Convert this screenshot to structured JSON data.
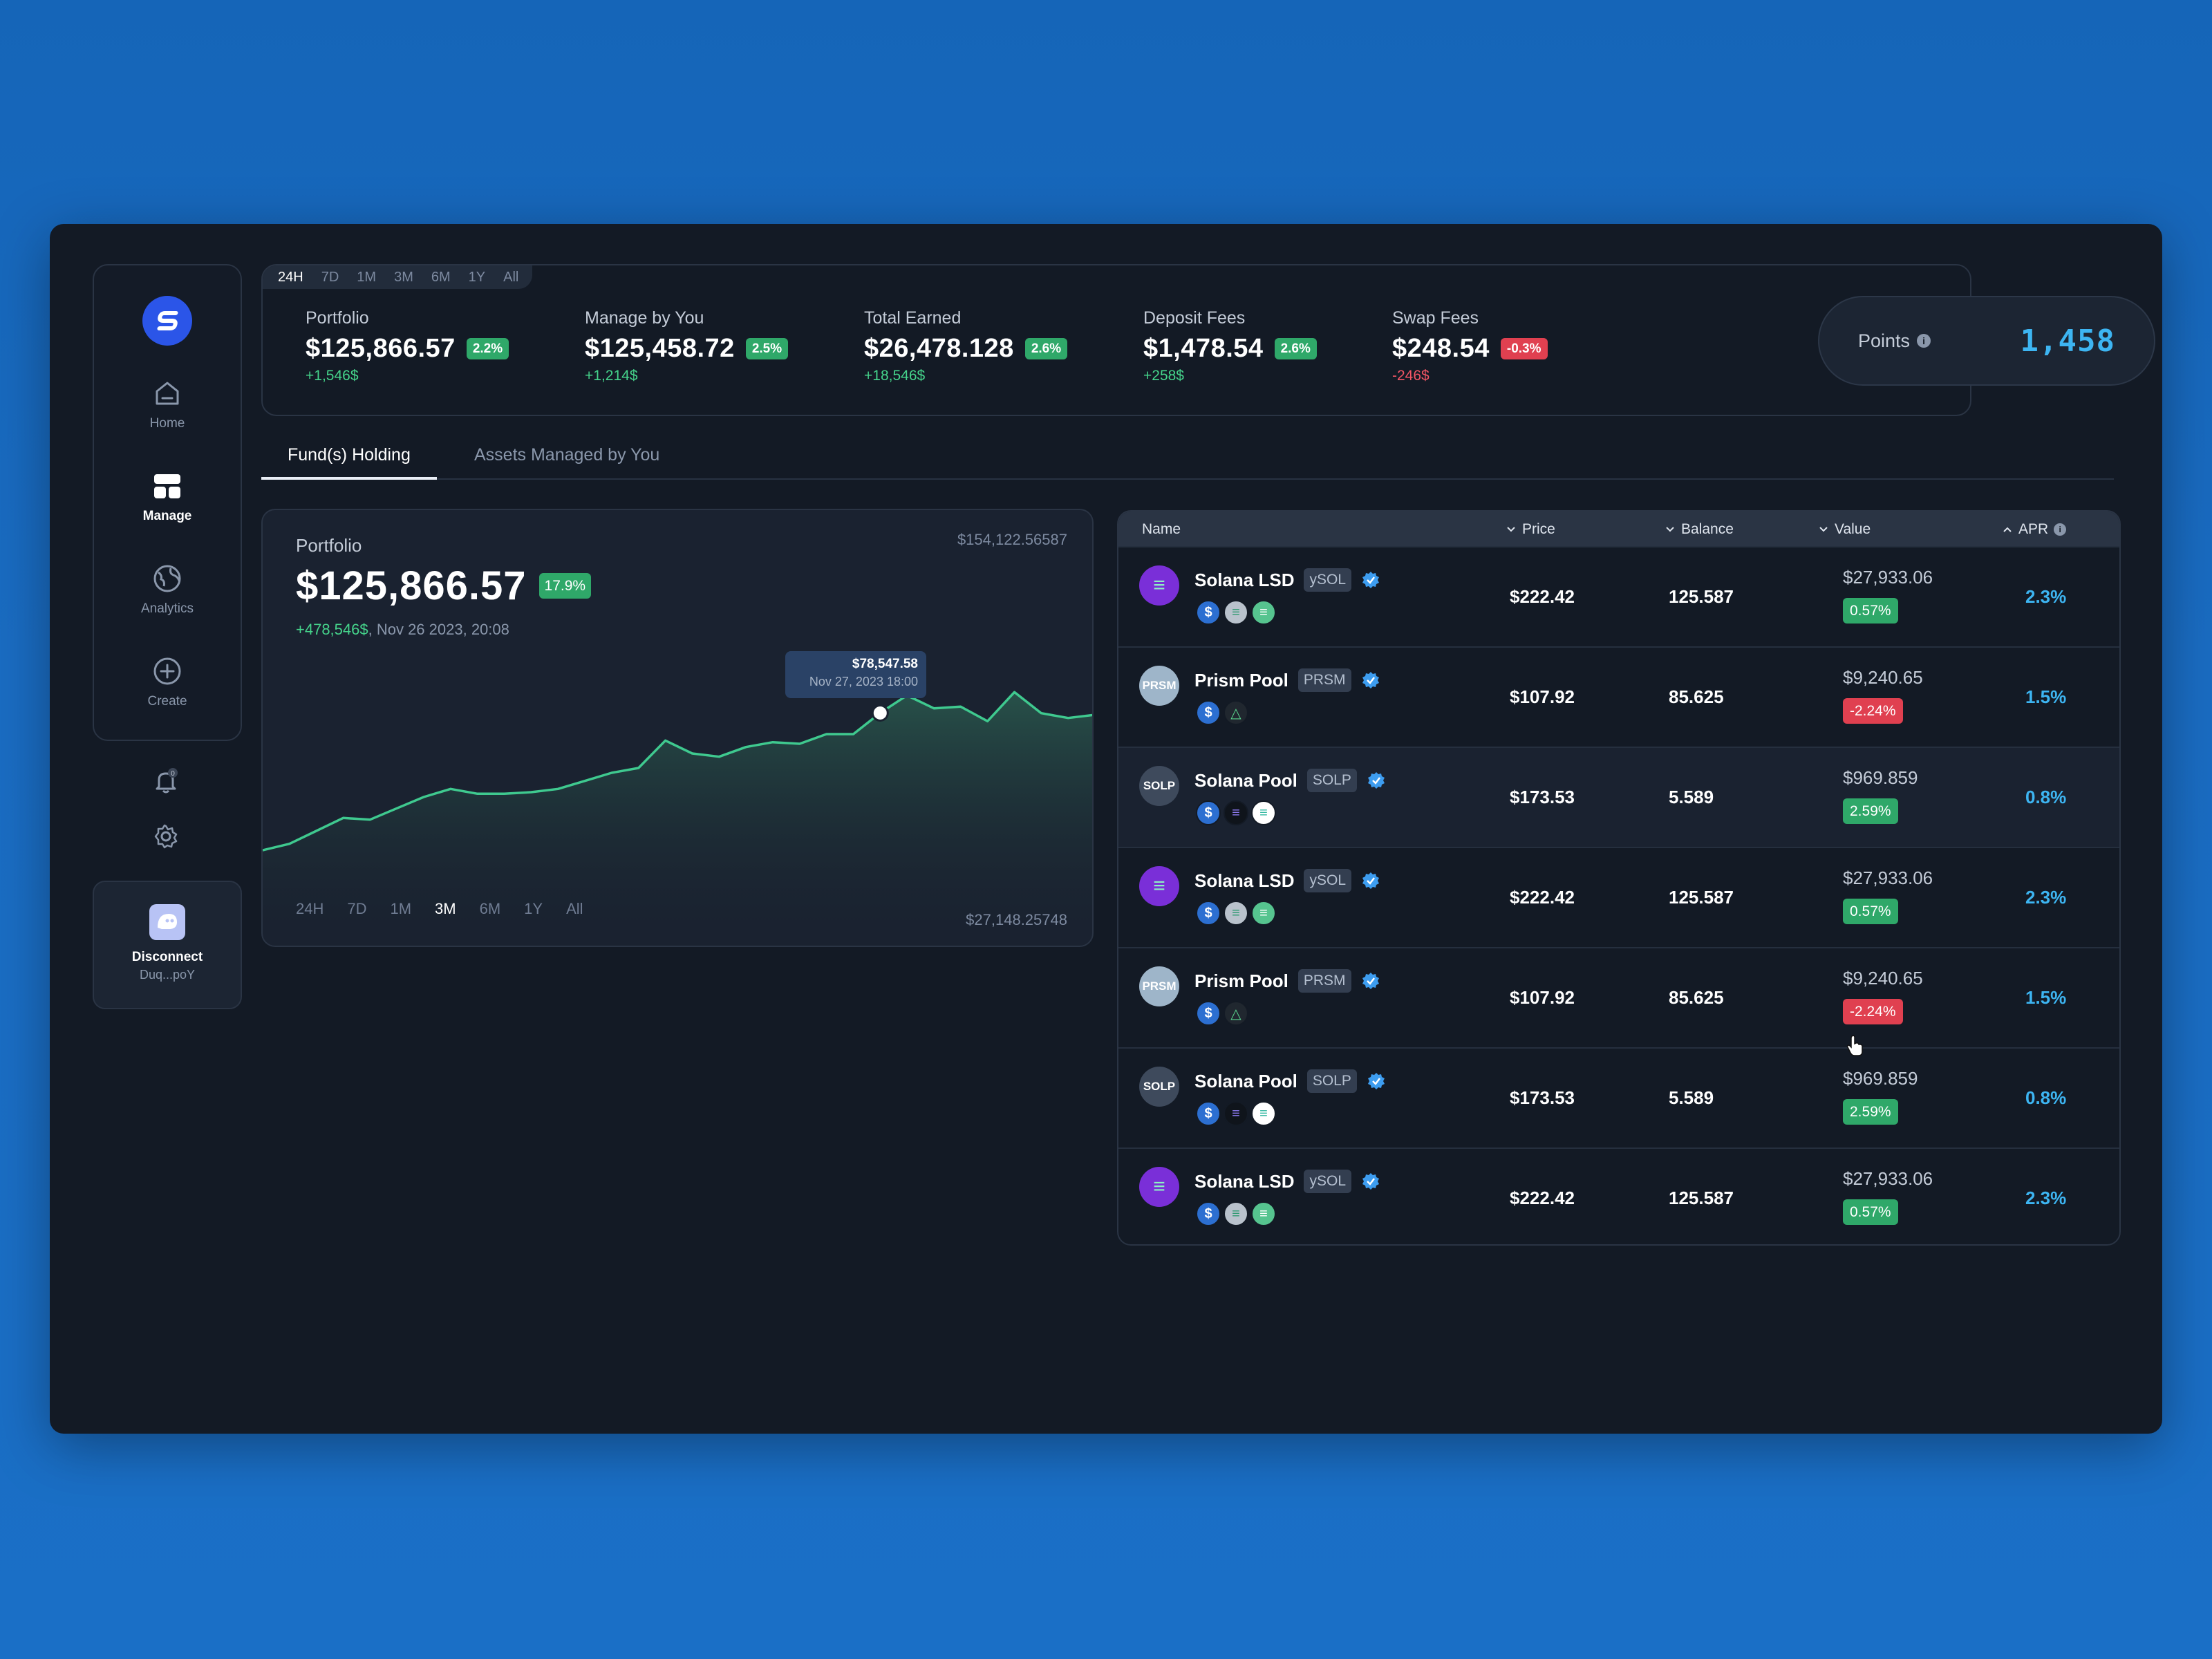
{
  "sidebar": {
    "nav": [
      {
        "label": "Home",
        "icon": "home-icon",
        "active": false
      },
      {
        "label": "Manage",
        "icon": "grid-icon",
        "active": true
      },
      {
        "label": "Analytics",
        "icon": "globe-icon",
        "active": false
      },
      {
        "label": "Create",
        "icon": "plus-circle-icon",
        "active": false
      }
    ],
    "notification_count": "0",
    "wallet": {
      "label": "Disconnect",
      "address": "Duq...poY"
    }
  },
  "stats": {
    "ranges": [
      "24H",
      "7D",
      "1M",
      "3M",
      "6M",
      "1Y",
      "All"
    ],
    "active_range": "24H",
    "items": [
      {
        "label": "Portfolio",
        "value": "$125,866.57",
        "badge": "2.2%",
        "badge_type": "green",
        "delta": "+1,546$",
        "delta_type": "pos"
      },
      {
        "label": "Manage by You",
        "value": "$125,458.72",
        "badge": "2.5%",
        "badge_type": "green",
        "delta": "+1,214$",
        "delta_type": "pos"
      },
      {
        "label": "Total Earned",
        "value": "$26,478.128",
        "badge": "2.6%",
        "badge_type": "green",
        "delta": "+18,546$",
        "delta_type": "pos"
      },
      {
        "label": "Deposit Fees",
        "value": "$1,478.54",
        "badge": "2.6%",
        "badge_type": "green",
        "delta": "+258$",
        "delta_type": "pos"
      },
      {
        "label": "Swap Fees",
        "value": "$248.54",
        "badge": "-0.3%",
        "badge_type": "red",
        "delta": "-246$",
        "delta_type": "neg"
      }
    ],
    "points": {
      "label": "Points",
      "value": "1,458"
    }
  },
  "tabs": [
    {
      "label": "Fund(s) Holding",
      "active": true
    },
    {
      "label": "Assets Managed by You",
      "active": false
    }
  ],
  "chart_card": {
    "title": "Portfolio",
    "value": "$125,866.57",
    "badge": "17.9%",
    "change": "+478,546$",
    "change_date": ", Nov 26 2023, 20:08",
    "max_label": "$154,122.56587",
    "min_label": "$27,148.25748",
    "tooltip": {
      "value": "$78,547.58",
      "date": "Nov 27, 2023  18:00"
    },
    "ranges": [
      "24H",
      "7D",
      "1M",
      "3M",
      "6M",
      "1Y",
      "All"
    ],
    "active_range": "3M"
  },
  "chart_data": {
    "type": "area",
    "title": "Portfolio",
    "ylim": [
      27148.25748,
      154122.56587
    ],
    "values": [
      36000,
      38000,
      42000,
      46000,
      45500,
      49000,
      52500,
      55000,
      53500,
      53500,
      54000,
      55000,
      57500,
      60000,
      61500,
      70000,
      66000,
      65000,
      68000,
      69500,
      69000,
      72000,
      72000,
      78547.58,
      84000,
      80000,
      80500,
      76000,
      85000,
      78500,
      77000,
      78000
    ],
    "highlight_index": 23,
    "line_color": "#3fc98f",
    "fill_color": "#2a5a4e"
  },
  "table": {
    "columns": [
      {
        "label": "Name",
        "sort": ""
      },
      {
        "label": "Price",
        "sort": "down"
      },
      {
        "label": "Balance",
        "sort": "down"
      },
      {
        "label": "Value",
        "sort": "down"
      },
      {
        "label": "APR",
        "sort": "up"
      }
    ],
    "rows": [
      {
        "name": "Solana LSD",
        "ticker": "ySOL",
        "logo": "solana-lsd",
        "tokens": [
          "usdc",
          "sol-gray",
          "sol-green"
        ],
        "price": "$222.42",
        "balance": "125.587",
        "value": "$27,933.06",
        "change": "0.57%",
        "change_type": "green",
        "apr": "2.3%"
      },
      {
        "name": "Prism Pool",
        "ticker": "PRSM",
        "logo": "prsm",
        "tokens": [
          "usdc",
          "prism"
        ],
        "price": "$107.92",
        "balance": "85.625",
        "value": "$9,240.65",
        "change": "-2.24%",
        "change_type": "red",
        "apr": "1.5%"
      },
      {
        "name": "Solana Pool",
        "ticker": "SOLP",
        "logo": "solp",
        "tokens": [
          "usdc",
          "sol-dark",
          "sol-white"
        ],
        "price": "$173.53",
        "balance": "5.589",
        "value": "$969.859",
        "change": "2.59%",
        "change_type": "green",
        "apr": "0.8%"
      },
      {
        "name": "Solana LSD",
        "ticker": "ySOL",
        "logo": "solana-lsd",
        "tokens": [
          "usdc",
          "sol-gray",
          "sol-green"
        ],
        "price": "$222.42",
        "balance": "125.587",
        "value": "$27,933.06",
        "change": "0.57%",
        "change_type": "green",
        "apr": "2.3%"
      },
      {
        "name": "Prism Pool",
        "ticker": "PRSM",
        "logo": "prsm",
        "tokens": [
          "usdc",
          "prism"
        ],
        "price": "$107.92",
        "balance": "85.625",
        "value": "$9,240.65",
        "change": "-2.24%",
        "change_type": "red",
        "apr": "1.5%"
      },
      {
        "name": "Solana Pool",
        "ticker": "SOLP",
        "logo": "solp",
        "tokens": [
          "usdc",
          "sol-dark",
          "sol-white"
        ],
        "price": "$173.53",
        "balance": "5.589",
        "value": "$969.859",
        "change": "2.59%",
        "change_type": "green",
        "apr": "0.8%"
      },
      {
        "name": "Solana LSD",
        "ticker": "ySOL",
        "logo": "solana-lsd",
        "tokens": [
          "usdc",
          "sol-gray",
          "sol-green"
        ],
        "price": "$222.42",
        "balance": "125.587",
        "value": "$27,933.06",
        "change": "0.57%",
        "change_type": "green",
        "apr": "2.3%"
      }
    ],
    "highlight_row": 2
  },
  "colors": {
    "accent": "#3db5f2",
    "positive": "#2fa869",
    "negative": "#e04050",
    "background": "#131a25"
  }
}
